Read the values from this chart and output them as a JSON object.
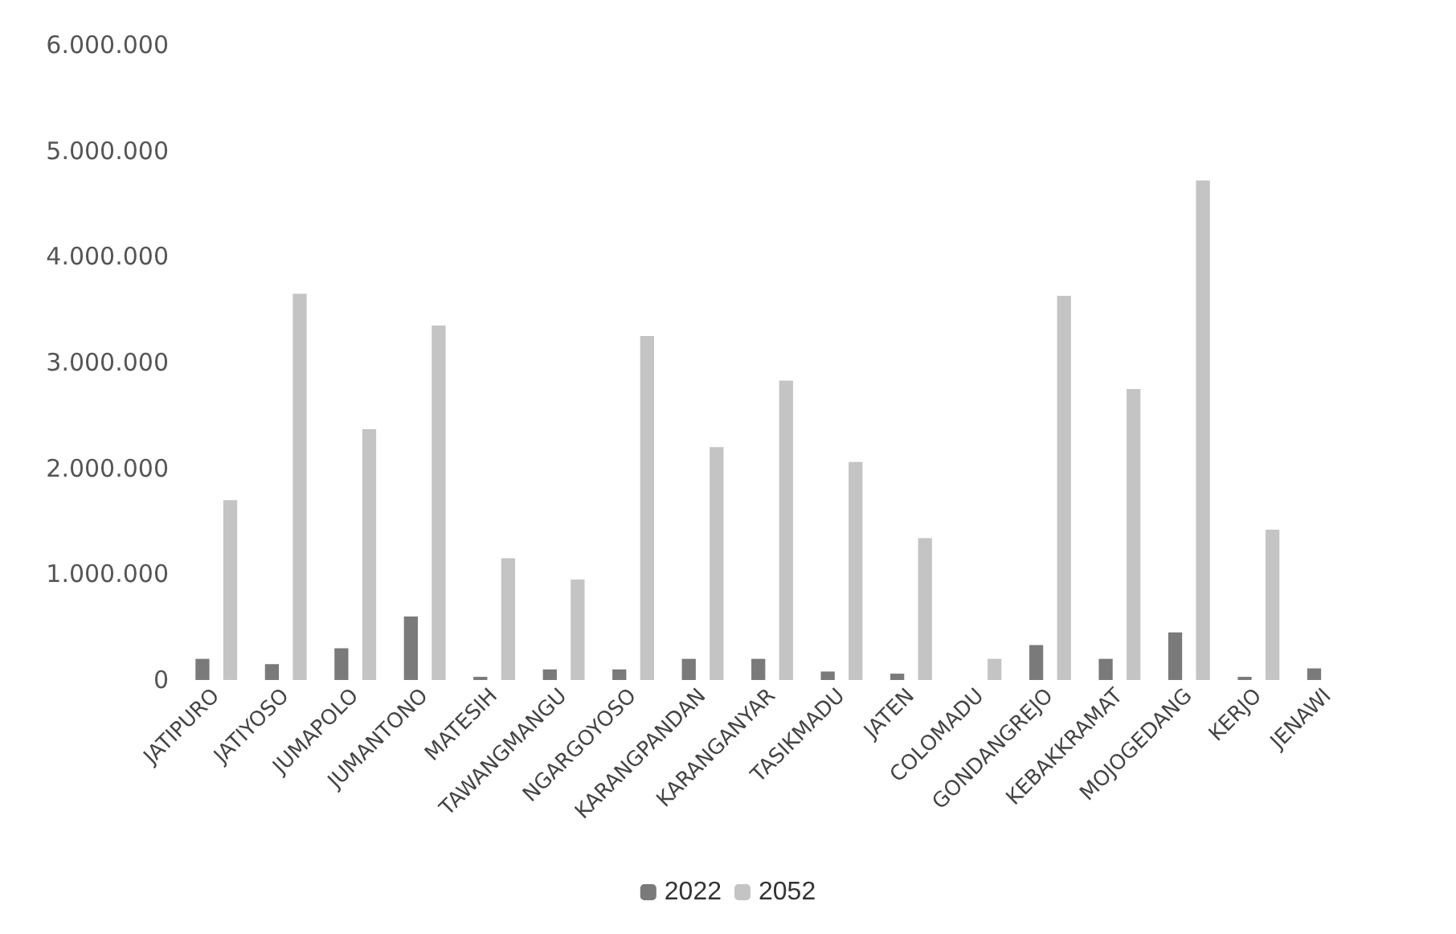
{
  "chart_data": {
    "type": "bar",
    "categories": [
      "JATIPURO",
      "JATIYOSO",
      "JUMAPOLO",
      "JUMANTONO",
      "MATESIH",
      "TAWANGMANGU",
      "NGARGOYOSO",
      "KARANGPANDAN",
      "KARANGANYAR",
      "TASIKMADU",
      "JATEN",
      "COLOMADU",
      "GONDANGREJO",
      "KEBAKKRAMAT",
      "MOJOGEDANG",
      "KERJO",
      "JENAWI"
    ],
    "series": [
      {
        "name": "2022",
        "color": "#7a7a7a",
        "values": [
          200000,
          150000,
          300000,
          600000,
          30000,
          100000,
          100000,
          200000,
          200000,
          80000,
          60000,
          0,
          330000,
          200000,
          450000,
          30000,
          110000
        ]
      },
      {
        "name": "2052",
        "color": "#c4c4c4",
        "values": [
          1700000,
          3650000,
          2370000,
          3350000,
          1150000,
          950000,
          3250000,
          2200000,
          2830000,
          2060000,
          1340000,
          200000,
          3630000,
          2750000,
          4720000,
          1420000,
          null
        ]
      }
    ],
    "ylim": [
      0,
      6000000
    ],
    "yticks": [
      {
        "value": 0,
        "label": "0"
      },
      {
        "value": 1000000,
        "label": "1.000.000"
      },
      {
        "value": 2000000,
        "label": "2.000.000"
      },
      {
        "value": 3000000,
        "label": "3.000.000"
      },
      {
        "value": 4000000,
        "label": "4.000.000"
      },
      {
        "value": 5000000,
        "label": "5.000.000"
      },
      {
        "value": 6000000,
        "label": "6.000.000"
      }
    ],
    "grid": false,
    "legend": "bottom"
  }
}
